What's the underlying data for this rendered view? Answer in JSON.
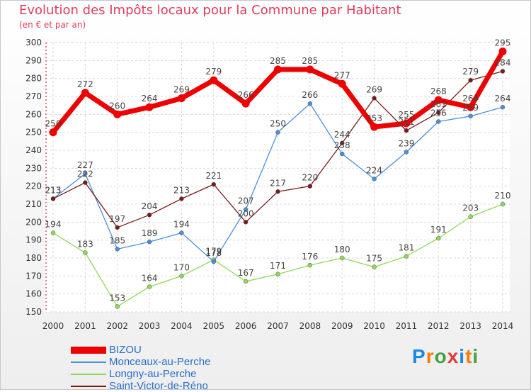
{
  "header": {
    "title": "Evolution des Impôts locaux pour la Commune par Habitant",
    "subtitle": "(en € et par an)"
  },
  "chart_data": {
    "type": "line",
    "title": "Evolution des Impôts locaux pour la Commune par Habitant",
    "subtitle": "(en € et par an)",
    "xlabel": "",
    "ylabel": "",
    "x": [
      2000,
      2001,
      2002,
      2003,
      2004,
      2005,
      2006,
      2007,
      2008,
      2009,
      2010,
      2011,
      2012,
      2013,
      2014
    ],
    "ylim": [
      150,
      300
    ],
    "yticks": [
      150,
      160,
      170,
      180,
      190,
      200,
      210,
      220,
      230,
      240,
      250,
      260,
      270,
      280,
      290,
      300
    ],
    "grid": true,
    "legend_position": "bottom-left",
    "series": [
      {
        "name": "BIZOU",
        "color": "#ee0000",
        "values": [
          250,
          272,
          260,
          264,
          269,
          279,
          266,
          285,
          285,
          277,
          253,
          255,
          268,
          264,
          295
        ]
      },
      {
        "name": "Monceaux-au-Perche",
        "color": "#4a90d9",
        "values": [
          213,
          227,
          185,
          189,
          194,
          178,
          207,
          250,
          266,
          238,
          224,
          239,
          256,
          259,
          264
        ]
      },
      {
        "name": "Longny-au-Perche",
        "color": "#8fd858",
        "values": [
          194,
          183,
          153,
          164,
          170,
          179,
          167,
          171,
          176,
          180,
          175,
          181,
          191,
          203,
          210
        ]
      },
      {
        "name": "Saint-Victor-de-Réno",
        "color": "#7a1a1a",
        "values": [
          213,
          222,
          197,
          204,
          213,
          221,
          200,
          217,
          220,
          244,
          269,
          251,
          261,
          279,
          284
        ]
      }
    ]
  },
  "logo": {
    "text": "Proxiti",
    "letters": [
      "P",
      "r",
      "o",
      "x",
      "i",
      "t",
      "i"
    ],
    "colors": [
      "#1e88e5",
      "#f57c00",
      "#43a047",
      "#e53935",
      "#1e88e5",
      "#f57c00",
      "#43a047"
    ]
  }
}
